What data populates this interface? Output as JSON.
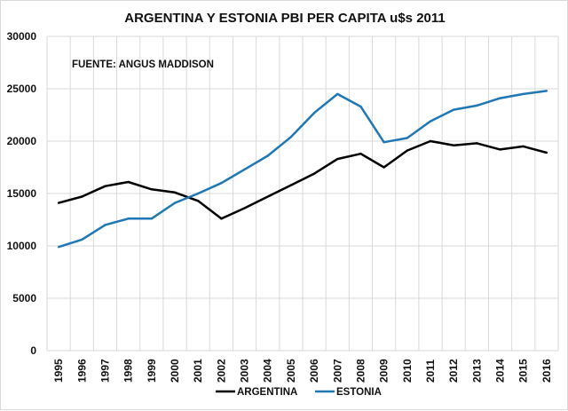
{
  "chart_data": {
    "type": "line",
    "title": "ARGENTINA  Y ESTONIA PBI PER CAPITA u$s 2011",
    "annotation": "FUENTE: ANGUS MADDISON",
    "xlabel": "",
    "ylabel": "",
    "ylim": [
      0,
      30000
    ],
    "yticks": [
      0,
      5000,
      10000,
      15000,
      20000,
      25000,
      30000
    ],
    "grid": true,
    "legend_position": "bottom",
    "categories": [
      "1995",
      "1996",
      "1997",
      "1998",
      "1999",
      "2000",
      "2001",
      "2002",
      "2003",
      "2004",
      "2005",
      "2006",
      "2007",
      "2008",
      "2009",
      "2010",
      "2011",
      "2012",
      "2013",
      "2014",
      "2015",
      "2016"
    ],
    "series": [
      {
        "name": "ARGENTINA",
        "color": "#000000",
        "values": [
          14100,
          14700,
          15700,
          16100,
          15400,
          15100,
          14300,
          12600,
          13600,
          14700,
          15800,
          16900,
          18300,
          18800,
          17500,
          19100,
          20000,
          19600,
          19800,
          19200,
          19500,
          18900
        ]
      },
      {
        "name": "ESTONIA",
        "color": "#1f77b4",
        "values": [
          9900,
          10600,
          12000,
          12600,
          12600,
          14100,
          15000,
          16000,
          17300,
          18600,
          20400,
          22700,
          24500,
          23300,
          19900,
          20300,
          21900,
          23000,
          23400,
          24100,
          24500,
          24800
        ]
      }
    ]
  }
}
